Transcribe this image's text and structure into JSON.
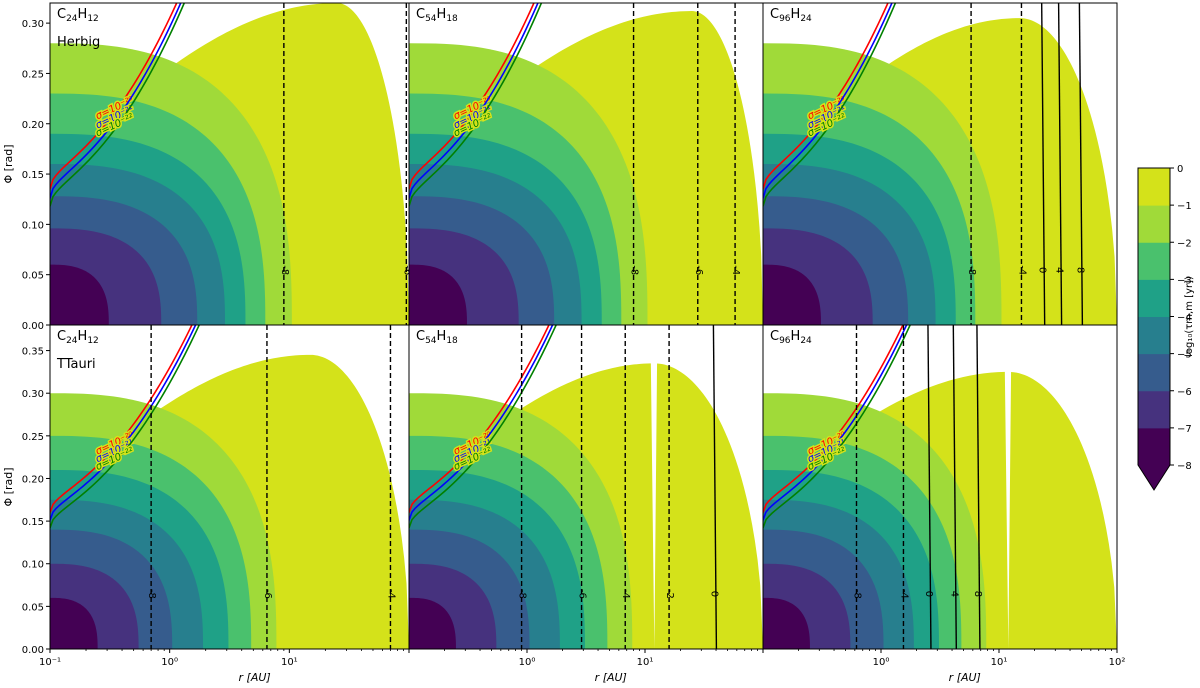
{
  "chart_data": {
    "type": "heatmap",
    "layout": {
      "rows": 2,
      "cols": 3,
      "sharex": true,
      "sharey": "row"
    },
    "xlabel": "r [AU]",
    "ylabel": "Φ [rad]",
    "xscale": "log",
    "xlim": [
      0.1,
      100
    ],
    "x_tick_labels": [
      "10⁻¹",
      "10⁰",
      "10¹",
      "10²"
    ],
    "x_tick_values": [
      0.1,
      1,
      10,
      100
    ],
    "colorbar": {
      "label": "log₁₀(τm,m [yr])",
      "range": [
        -8,
        0
      ],
      "ticks": [
        0,
        -1,
        -2,
        -3,
        -4,
        -5,
        -6,
        -7,
        -8
      ],
      "tick_labels": [
        "0",
        "−1",
        "−2",
        "−3",
        "−4",
        "−5",
        "−6",
        "−7",
        "−8"
      ],
      "extend": "min",
      "colors": [
        "#440154",
        "#46327e",
        "#365c8d",
        "#277f8e",
        "#1fa187",
        "#4ac16d",
        "#a0da39",
        "#d4e21a"
      ]
    },
    "sigma_curves": [
      {
        "label": "σ=10⁻²⁰",
        "color": "#ff0000"
      },
      {
        "label": "σ=10⁻²¹",
        "color": "#0000ff"
      },
      {
        "label": "σ=10⁻²²",
        "color": "#008000"
      }
    ],
    "panels": [
      {
        "row": 0,
        "col": 0,
        "molecule": "C24H12",
        "molecule_parts": [
          "C",
          "24",
          "H",
          "12"
        ],
        "label": "Herbig",
        "ylim": [
          0,
          0.32
        ],
        "yticks": [
          0.0,
          0.05,
          0.1,
          0.15,
          0.2,
          0.25,
          0.3
        ],
        "ytick_labels": [
          "0.00",
          "0.05",
          "0.10",
          "0.15",
          "0.20",
          "0.25",
          "0.30"
        ],
        "r_peak": 25,
        "phi_peak": 0.32,
        "phi_inner": 0.155,
        "shape_exp": 0.75,
        "level_r": [
          0.31,
          0.85,
          1.7,
          2.9,
          4.3,
          6.3,
          10.5
        ],
        "level_phi": [
          0.06,
          0.096,
          0.128,
          0.16,
          0.19,
          0.23,
          0.28
        ],
        "sigma_phi_at_r0": [
          0.135,
          0.126,
          0.118
        ],
        "contours": [
          {
            "r": 9,
            "label": "8",
            "style": "dashed"
          },
          {
            "r": 95,
            "label": "6",
            "style": "dashed"
          }
        ]
      },
      {
        "row": 0,
        "col": 1,
        "molecule": "C54H18",
        "molecule_parts": [
          "C",
          "54",
          "H",
          "18"
        ],
        "label": "",
        "ylim": [
          0,
          0.32
        ],
        "r_peak": 25,
        "phi_peak": 0.312,
        "phi_inner": 0.155,
        "shape_exp": 0.75,
        "level_r": [
          0.31,
          0.85,
          1.7,
          2.9,
          4.3,
          6.3,
          10.5
        ],
        "level_phi": [
          0.06,
          0.096,
          0.128,
          0.16,
          0.19,
          0.23,
          0.28
        ],
        "sigma_phi_at_r0": [
          0.135,
          0.126,
          0.118
        ],
        "contours": [
          {
            "r": 8,
            "label": "8",
            "style": "dashed"
          },
          {
            "r": 28,
            "label": "6",
            "style": "dashed"
          },
          {
            "r": 58,
            "label": "4",
            "style": "dashed"
          }
        ]
      },
      {
        "row": 0,
        "col": 2,
        "molecule": "C96H24",
        "molecule_parts": [
          "C",
          "96",
          "H",
          "24"
        ],
        "label": "",
        "ylim": [
          0,
          0.32
        ],
        "r_peak": 15,
        "phi_peak": 0.305,
        "phi_inner": 0.155,
        "shape_exp": 0.75,
        "level_r": [
          0.31,
          0.85,
          1.7,
          2.9,
          4.3,
          6.3,
          10.5
        ],
        "level_phi": [
          0.06,
          0.096,
          0.128,
          0.16,
          0.19,
          0.23,
          0.28
        ],
        "sigma_phi_at_r0": [
          0.135,
          0.126,
          0.118
        ],
        "contours": [
          {
            "r": 5.8,
            "label": "8",
            "style": "dashed"
          },
          {
            "r": 15.5,
            "label": "4",
            "style": "dashed"
          },
          {
            "r": 23,
            "label": "0",
            "style": "solid"
          },
          {
            "r": 32,
            "label": "4",
            "style": "solid"
          },
          {
            "r": 48,
            "label": "8",
            "style": "solid"
          }
        ]
      },
      {
        "row": 1,
        "col": 0,
        "molecule": "C24H12",
        "molecule_parts": [
          "C",
          "24",
          "H",
          "12"
        ],
        "label": "TTauri",
        "ylim": [
          0,
          0.38
        ],
        "yticks": [
          0.0,
          0.05,
          0.1,
          0.15,
          0.2,
          0.25,
          0.3,
          0.35
        ],
        "ytick_labels": [
          "0.00",
          "0.05",
          "0.10",
          "0.15",
          "0.20",
          "0.25",
          "0.30",
          "0.35"
        ],
        "r_peak": 15,
        "phi_peak": 0.345,
        "phi_inner": 0.18,
        "shape_exp": 0.75,
        "level_r": [
          0.25,
          0.55,
          1.05,
          1.9,
          3.1,
          4.8,
          7.8
        ],
        "level_phi": [
          0.06,
          0.1,
          0.14,
          0.175,
          0.21,
          0.25,
          0.3
        ],
        "sigma_phi_at_r0": [
          0.16,
          0.151,
          0.142
        ],
        "contours": [
          {
            "r": 0.7,
            "label": "8",
            "style": "dashed"
          },
          {
            "r": 6.5,
            "label": "6",
            "style": "dashed"
          },
          {
            "r": 70,
            "label": "4",
            "style": "dashed"
          }
        ]
      },
      {
        "row": 1,
        "col": 1,
        "molecule": "C54H18",
        "molecule_parts": [
          "C",
          "54",
          "H",
          "18"
        ],
        "label": "",
        "ylim": [
          0,
          0.38
        ],
        "r_peak": 12,
        "phi_peak": 0.335,
        "phi_inner": 0.18,
        "shape_exp": 0.75,
        "level_r": [
          0.25,
          0.55,
          1.05,
          1.9,
          3.1,
          4.8,
          7.8
        ],
        "level_phi": [
          0.06,
          0.1,
          0.14,
          0.175,
          0.21,
          0.25,
          0.3
        ],
        "sigma_phi_at_r0": [
          0.16,
          0.151,
          0.142
        ],
        "contours": [
          {
            "r": 0.9,
            "label": "8",
            "style": "dashed"
          },
          {
            "r": 2.9,
            "label": "6",
            "style": "dashed"
          },
          {
            "r": 6.8,
            "label": "4",
            "style": "dashed"
          },
          {
            "r": 16,
            "label": "2",
            "style": "dashed"
          },
          {
            "r": 38,
            "label": "0",
            "style": "solid"
          }
        ]
      },
      {
        "row": 1,
        "col": 2,
        "molecule": "C96H24",
        "molecule_parts": [
          "C",
          "96",
          "H",
          "24"
        ],
        "label": "",
        "ylim": [
          0,
          0.38
        ],
        "r_peak": 12,
        "phi_peak": 0.325,
        "phi_inner": 0.18,
        "shape_exp": 0.75,
        "level_r": [
          0.25,
          0.55,
          1.05,
          1.9,
          3.1,
          4.8,
          7.8
        ],
        "level_phi": [
          0.06,
          0.1,
          0.14,
          0.175,
          0.21,
          0.25,
          0.3
        ],
        "sigma_phi_at_r0": [
          0.16,
          0.151,
          0.142
        ],
        "contours": [
          {
            "r": 0.62,
            "label": "8",
            "style": "dashed"
          },
          {
            "r": 1.55,
            "label": "4",
            "style": "dashed"
          },
          {
            "r": 2.5,
            "label": "0",
            "style": "solid"
          },
          {
            "r": 4.1,
            "label": "4",
            "style": "solid"
          },
          {
            "r": 6.5,
            "label": "8",
            "style": "solid"
          }
        ]
      }
    ]
  }
}
